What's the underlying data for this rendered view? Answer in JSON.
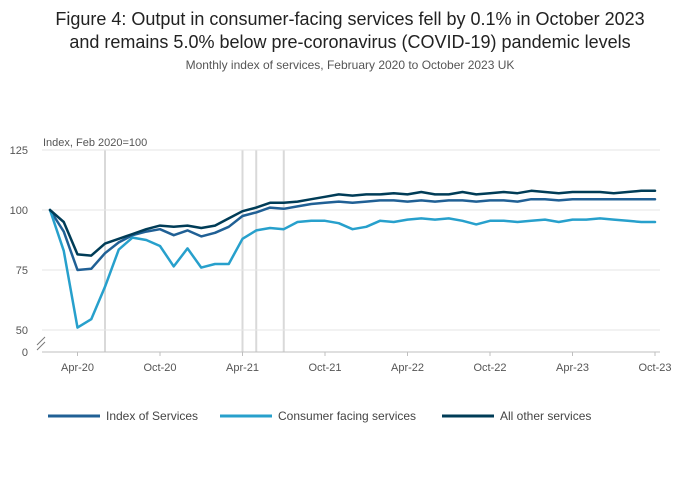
{
  "chart_data": {
    "type": "line",
    "title": "Figure 4: Output in consumer-facing services fell by 0.1% in October 2023 and remains 5.0% below pre-coronavirus (COVID-19) pandemic levels",
    "title_lines": [
      "Figure 4: Output in consumer-facing services fell by 0.1% in October 2023",
      "and remains 5.0% below pre-coronavirus (COVID-19) pandemic levels"
    ],
    "subtitle": "Monthly index of services, February 2020 to October 2023 UK",
    "ylabel": "Index, Feb 2020=100",
    "xlabel": "",
    "ylim": [
      0,
      125
    ],
    "yticks": [
      {
        "value": 0,
        "label": "0"
      },
      {
        "value": 50,
        "label": "50"
      },
      {
        "value": 75,
        "label": "75"
      },
      {
        "value": 100,
        "label": "100"
      },
      {
        "value": 125,
        "label": "125"
      }
    ],
    "axis_break": true,
    "xtick_labels": [
      "Apr-20",
      "Oct-20",
      "Apr-21",
      "Oct-21",
      "Apr-22",
      "Oct-22",
      "Apr-23",
      "Oct-23"
    ],
    "x": [
      "Feb-20",
      "Mar-20",
      "Apr-20",
      "May-20",
      "Jun-20",
      "Jul-20",
      "Aug-20",
      "Sep-20",
      "Oct-20",
      "Nov-20",
      "Dec-20",
      "Jan-21",
      "Feb-21",
      "Mar-21",
      "Apr-21",
      "May-21",
      "Jun-21",
      "Jul-21",
      "Aug-21",
      "Sep-21",
      "Oct-21",
      "Nov-21",
      "Dec-21",
      "Jan-22",
      "Feb-22",
      "Mar-22",
      "Apr-22",
      "May-22",
      "Jun-22",
      "Jul-22",
      "Aug-22",
      "Sep-22",
      "Oct-22",
      "Nov-22",
      "Dec-22",
      "Jan-23",
      "Feb-23",
      "Mar-23",
      "Apr-23",
      "May-23",
      "Jun-23",
      "Jul-23",
      "Aug-23",
      "Sep-23",
      "Oct-23"
    ],
    "reference_lines": [
      "Jun-20",
      "Apr-21",
      "May-21",
      "Jul-21"
    ],
    "grid": true,
    "legend_position": "bottom",
    "series": [
      {
        "name": "Index of Services",
        "color": "#206095",
        "values": [
          100,
          91,
          75,
          75.5,
          82,
          86.5,
          89.5,
          91,
          92,
          89.5,
          91.5,
          89,
          90.5,
          93,
          97.5,
          99,
          101,
          100.5,
          101.5,
          102.5,
          103,
          103.5,
          103,
          103.5,
          104,
          104,
          103.5,
          104,
          103.5,
          104,
          104,
          103.5,
          104,
          104,
          103.5,
          104.5,
          104.5,
          104,
          104.5,
          104.5,
          104.5,
          104.5,
          104.5,
          104.5,
          104.5
        ]
      },
      {
        "name": "Consumer facing services",
        "color": "#27a0cc",
        "values": [
          100,
          83,
          51,
          54.5,
          68,
          83.5,
          88.5,
          87.5,
          85,
          76.5,
          84,
          76,
          77.5,
          77.5,
          88,
          91.5,
          92.5,
          92,
          95,
          95.5,
          95.5,
          94.5,
          92,
          93,
          95.5,
          95,
          96,
          96.5,
          96,
          96.5,
          95.5,
          94,
          95.5,
          95.5,
          95,
          95.5,
          96,
          95,
          96,
          96,
          96.5,
          96,
          95.5,
          95,
          95
        ]
      },
      {
        "name": "All other services",
        "color": "#003c57",
        "values": [
          100,
          95,
          81.5,
          81,
          86,
          88,
          90,
          92,
          93.5,
          93,
          93.5,
          92.5,
          93.5,
          96.5,
          99.5,
          101,
          103,
          103,
          103.5,
          104.5,
          105.5,
          106.5,
          106,
          106.5,
          106.5,
          107,
          106.5,
          107.5,
          106.5,
          106.5,
          107.5,
          106.5,
          107,
          107.5,
          107,
          108,
          107.5,
          107,
          107.5,
          107.5,
          107.5,
          107,
          107.5,
          108,
          108
        ]
      }
    ]
  }
}
